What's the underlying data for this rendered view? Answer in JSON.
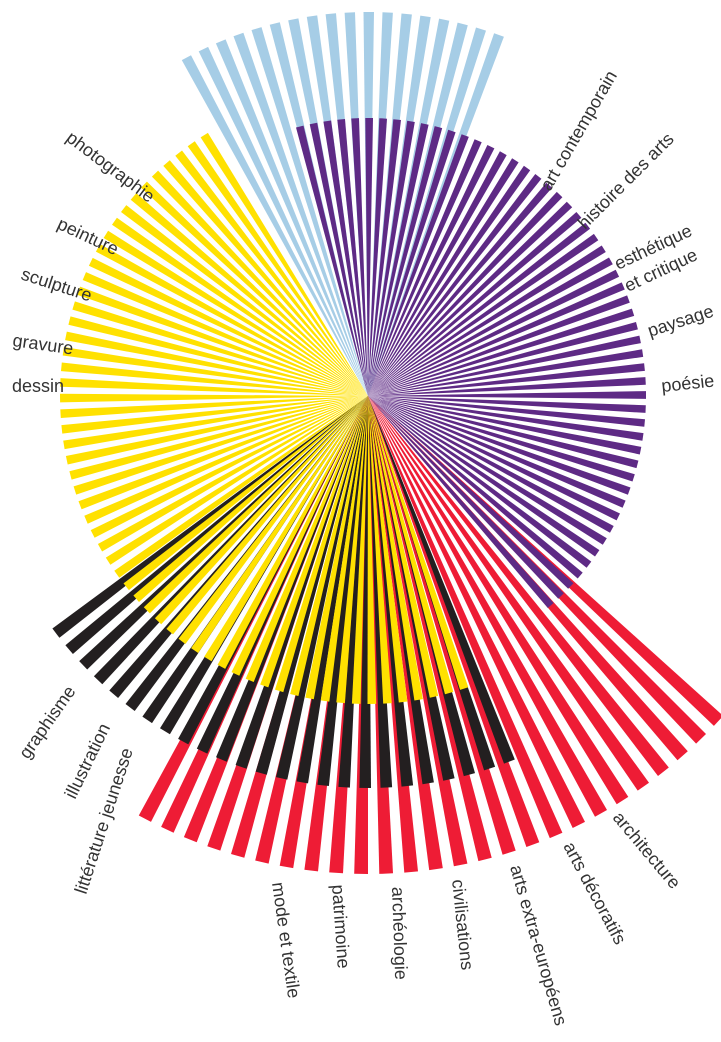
{
  "colors": {
    "light_blue": "#a6cde6",
    "purple": "#5e2a85",
    "yellow": "#ffe100",
    "black": "#231f20",
    "red": "#ee1c35",
    "label": "#333333"
  },
  "labels": {
    "photographie": "photographie",
    "peinture": "peinture",
    "sculpture": "sculpture",
    "gravure": "gravure",
    "dessin": "dessin",
    "art_contemporain": "art contemporain",
    "histoire_des_arts": "histoire des arts",
    "esthetique_line1": "esthétique",
    "esthetique_line2": "et critique",
    "paysage": "paysage",
    "poesie": "poésie",
    "graphisme": "graphisme",
    "illustration": "illustration",
    "litterature_jeunesse": "littérature jeunesse",
    "mode_et_textile": "mode et textile",
    "patrimoine": "patrimoine",
    "archeologie": "archéologie",
    "civilisations": "civilisations",
    "arts_extra_europeens": "arts extra-européens",
    "arts_decoratifs": "arts décoratifs",
    "architecture": "architecture"
  }
}
